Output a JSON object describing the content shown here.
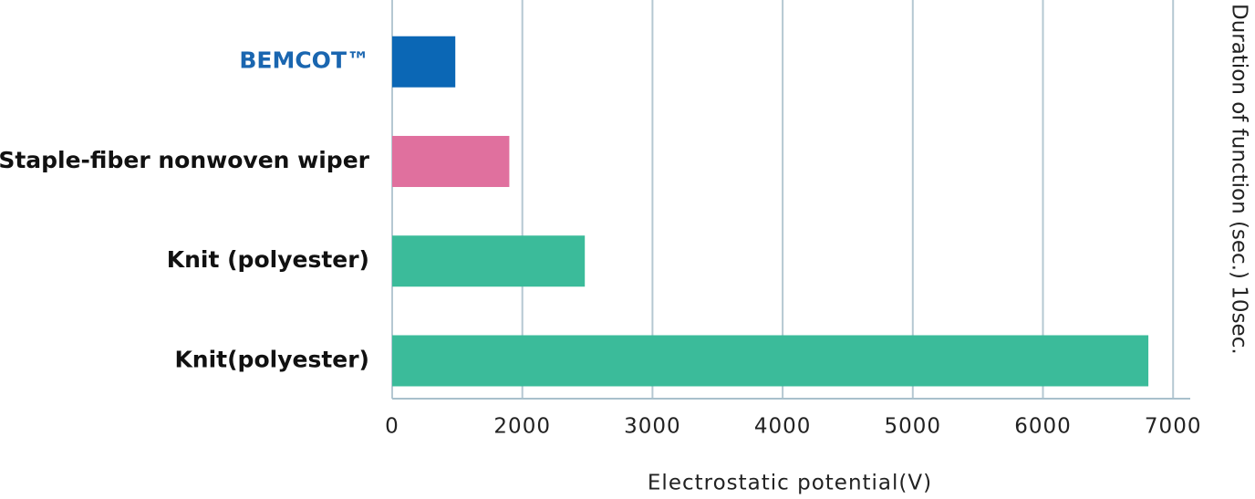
{
  "chart_data": {
    "type": "barh",
    "categories": [
      "BEMCOT™",
      "Staple-fiber nonwoven wiper",
      "Knit (polyester)",
      "Knit(polyester)"
    ],
    "values": [
      970,
      1800,
      2480,
      6810
    ],
    "colors": [
      "#0b67b5",
      "#e0709e",
      "#3bbb9a",
      "#3bbb9a"
    ],
    "label_colors": [
      "#1a66b0",
      "#111111",
      "#111111",
      "#111111"
    ],
    "xlim": [
      0,
      7000
    ],
    "xticks": [
      0,
      2000,
      3000,
      4000,
      5000,
      6000,
      7000
    ],
    "grid": true,
    "x_label": "Electrostatic potential(V)",
    "annotation": "Duration of function (sec.) 10sec."
  }
}
